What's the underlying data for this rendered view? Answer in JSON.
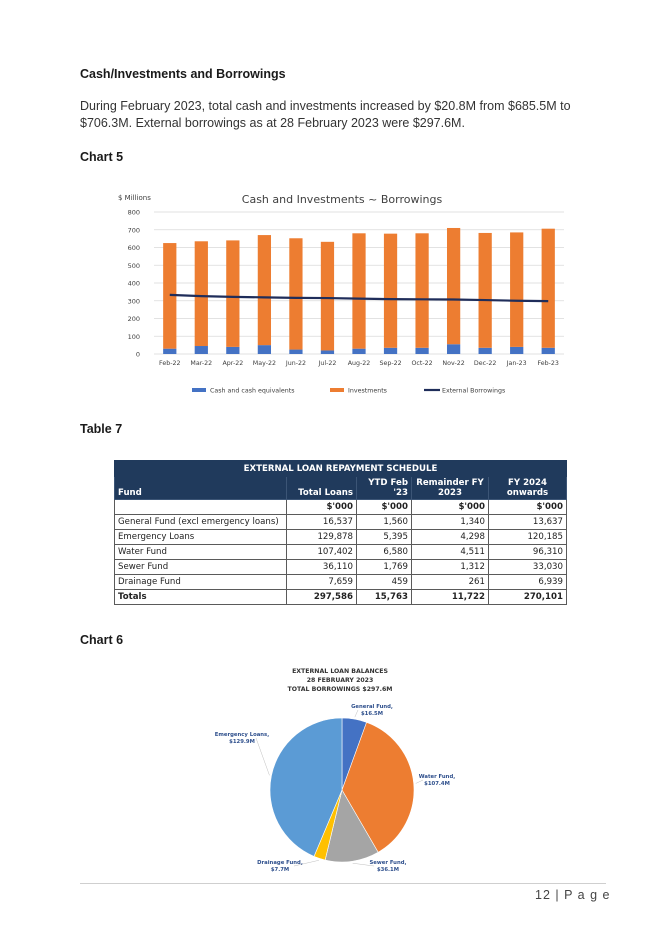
{
  "section_heading": "Cash/Investments and Borrowings",
  "paragraph_line1": "During February 2023, total cash and investments increased by $20.8M from $685.5M to",
  "paragraph_line2": "$706.3M. External borrowings as at 28 February 2023 were $297.6M.",
  "chart5_label": "Chart 5",
  "table7_label": "Table 7",
  "chart6_label": "Chart 6",
  "page_number": "12 | P a g e",
  "colors": {
    "cash": "#4472c4",
    "investments": "#ed7d31",
    "borrowings": "#1f2d5a",
    "table_header": "#203a5c",
    "pie_general": "#4472c4",
    "pie_water": "#ed7d31",
    "pie_sewer": "#a5a5a5",
    "pie_drainage": "#ffc000",
    "pie_emergency": "#5b9bd5"
  },
  "chart_data": [
    {
      "type": "bar",
      "stacked": true,
      "title": "Cash and Investments ~ Borrowings",
      "ylabel": "$ Millions",
      "xlabel": "",
      "ylim": [
        0,
        800
      ],
      "yticks": [
        "0",
        "100",
        "200",
        "300",
        "400",
        "500",
        "600",
        "700",
        "800"
      ],
      "grid": true,
      "legend_position": "bottom",
      "categories": [
        "Feb-22",
        "Mar-22",
        "Apr-22",
        "May-22",
        "Jun-22",
        "Jul-22",
        "Aug-22",
        "Sep-22",
        "Oct-22",
        "Nov-22",
        "Dec-22",
        "Jan-23",
        "Feb-23"
      ],
      "series": [
        {
          "name": "Cash and cash equivalents",
          "kind": "bar",
          "values": [
            30,
            45,
            40,
            50,
            25,
            20,
            30,
            35,
            35,
            55,
            35,
            40,
            35
          ]
        },
        {
          "name": "Investments",
          "kind": "bar",
          "values": [
            595,
            590,
            600,
            620,
            627,
            612,
            650,
            643,
            645,
            655,
            647,
            645,
            671
          ]
        },
        {
          "name": "External Borrowings",
          "kind": "line",
          "values": [
            333,
            326,
            322,
            319,
            316,
            315,
            312,
            309,
            308,
            307,
            304,
            300,
            298
          ]
        }
      ]
    },
    {
      "type": "pie",
      "title_lines": [
        "EXTERNAL LOAN BALANCES",
        "28 FEBRUARY 2023",
        "TOTAL BORROWINGS $297.6M"
      ],
      "slices": [
        {
          "name": "General Fund,",
          "value_label": "$16.5M",
          "value": 16.5
        },
        {
          "name": "Water Fund,",
          "value_label": "$107.4M",
          "value": 107.4
        },
        {
          "name": "Sewer Fund,",
          "value_label": "$36.1M",
          "value": 36.1
        },
        {
          "name": "Drainage Fund,",
          "value_label": "$7.7M",
          "value": 7.7
        },
        {
          "name": "Emergency Loans,",
          "value_label": "$129.9M",
          "value": 129.9
        }
      ]
    }
  ],
  "loan_table": {
    "title": "EXTERNAL LOAN REPAYMENT SCHEDULE",
    "headers": {
      "fund": "Fund",
      "total": "Total Loans",
      "ytd": "YTD Feb '23",
      "remainder_1": "Remainder FY",
      "remainder_2": "2023",
      "fy_1": "FY 2024",
      "fy_2": "onwards"
    },
    "unit": "$'000",
    "rows": [
      {
        "fund": "General Fund (excl emergency loans)",
        "total": "16,537",
        "ytd": "1,560",
        "remainder": "1,340",
        "fy2024": "13,637"
      },
      {
        "fund": "Emergency Loans",
        "total": "129,878",
        "ytd": "5,395",
        "remainder": "4,298",
        "fy2024": "120,185"
      },
      {
        "fund": "Water Fund",
        "total": "107,402",
        "ytd": "6,580",
        "remainder": "4,511",
        "fy2024": "96,310"
      },
      {
        "fund": "Sewer Fund",
        "total": "36,110",
        "ytd": "1,769",
        "remainder": "1,312",
        "fy2024": "33,030"
      },
      {
        "fund": "Drainage Fund",
        "total": "7,659",
        "ytd": "459",
        "remainder": "261",
        "fy2024": "6,939"
      }
    ],
    "totals": {
      "fund": "Totals",
      "total": "297,586",
      "ytd": "15,763",
      "remainder": "11,722",
      "fy2024": "270,101"
    }
  }
}
